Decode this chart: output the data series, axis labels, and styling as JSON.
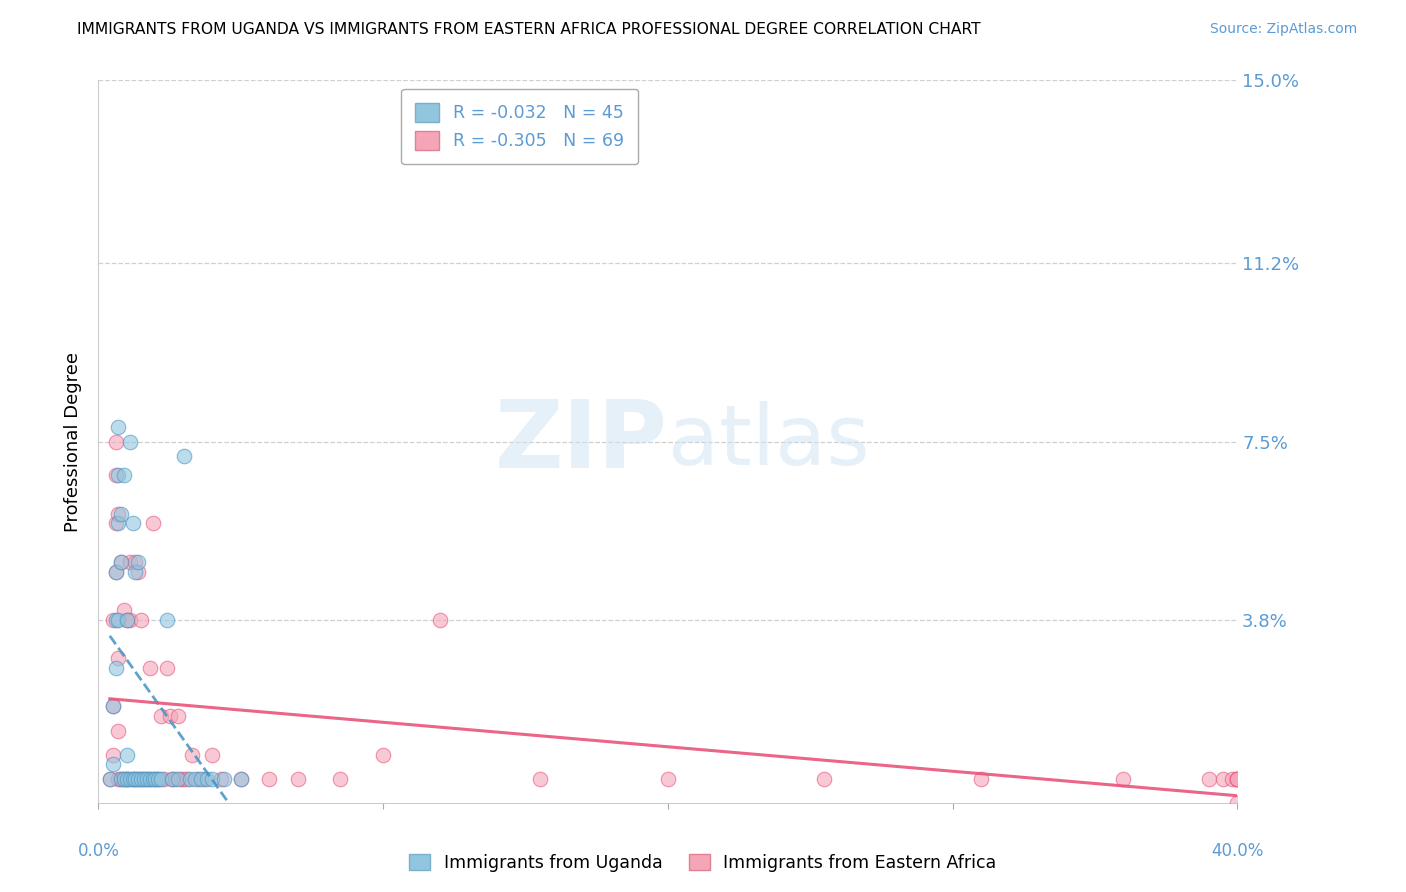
{
  "title": "IMMIGRANTS FROM UGANDA VS IMMIGRANTS FROM EASTERN AFRICA PROFESSIONAL DEGREE CORRELATION CHART",
  "source": "Source: ZipAtlas.com",
  "ylabel": "Professional Degree",
  "xlim": [
    0.0,
    0.4
  ],
  "ylim": [
    0.0,
    0.15
  ],
  "yticks": [
    0.0,
    0.038,
    0.075,
    0.112,
    0.15
  ],
  "ytick_labels": [
    "",
    "3.8%",
    "7.5%",
    "11.2%",
    "15.0%"
  ],
  "xtick_left_label": "0.0%",
  "xtick_right_label": "40.0%",
  "legend1_r_blue": "-0.032",
  "legend1_n_blue": "45",
  "legend1_r_pink": "-0.305",
  "legend1_n_pink": "69",
  "color_blue": "#92c5de",
  "color_pink": "#f4a6b8",
  "color_blue_line": "#4393c3",
  "color_pink_line": "#e8547a",
  "watermark_text": "ZIPatlas",
  "blue_x": [
    0.004,
    0.005,
    0.005,
    0.006,
    0.006,
    0.006,
    0.007,
    0.007,
    0.007,
    0.007,
    0.008,
    0.008,
    0.008,
    0.009,
    0.009,
    0.01,
    0.01,
    0.01,
    0.011,
    0.011,
    0.012,
    0.012,
    0.013,
    0.013,
    0.014,
    0.014,
    0.015,
    0.016,
    0.017,
    0.018,
    0.019,
    0.02,
    0.021,
    0.022,
    0.024,
    0.026,
    0.028,
    0.03,
    0.032,
    0.034,
    0.036,
    0.038,
    0.04,
    0.044,
    0.05
  ],
  "blue_y": [
    0.005,
    0.008,
    0.02,
    0.028,
    0.038,
    0.048,
    0.058,
    0.068,
    0.078,
    0.038,
    0.005,
    0.05,
    0.06,
    0.005,
    0.068,
    0.005,
    0.01,
    0.038,
    0.005,
    0.075,
    0.005,
    0.058,
    0.005,
    0.048,
    0.005,
    0.05,
    0.005,
    0.005,
    0.005,
    0.005,
    0.005,
    0.005,
    0.005,
    0.005,
    0.038,
    0.005,
    0.005,
    0.072,
    0.005,
    0.005,
    0.005,
    0.005,
    0.005,
    0.005,
    0.005
  ],
  "pink_x": [
    0.004,
    0.005,
    0.005,
    0.005,
    0.006,
    0.006,
    0.006,
    0.006,
    0.007,
    0.007,
    0.007,
    0.007,
    0.008,
    0.008,
    0.009,
    0.009,
    0.01,
    0.01,
    0.01,
    0.011,
    0.011,
    0.012,
    0.013,
    0.013,
    0.014,
    0.014,
    0.015,
    0.015,
    0.016,
    0.017,
    0.018,
    0.018,
    0.019,
    0.02,
    0.021,
    0.022,
    0.023,
    0.024,
    0.025,
    0.026,
    0.027,
    0.028,
    0.029,
    0.03,
    0.031,
    0.033,
    0.035,
    0.037,
    0.04,
    0.043,
    0.05,
    0.06,
    0.07,
    0.085,
    0.1,
    0.12,
    0.155,
    0.2,
    0.255,
    0.31,
    0.36,
    0.39,
    0.395,
    0.398,
    0.4,
    0.4,
    0.4,
    0.4,
    0.4
  ],
  "pink_y": [
    0.005,
    0.01,
    0.02,
    0.038,
    0.048,
    0.058,
    0.068,
    0.075,
    0.005,
    0.015,
    0.03,
    0.06,
    0.005,
    0.05,
    0.005,
    0.04,
    0.005,
    0.005,
    0.038,
    0.038,
    0.05,
    0.005,
    0.005,
    0.05,
    0.048,
    0.005,
    0.005,
    0.038,
    0.005,
    0.005,
    0.005,
    0.028,
    0.058,
    0.005,
    0.005,
    0.018,
    0.005,
    0.028,
    0.018,
    0.005,
    0.005,
    0.018,
    0.005,
    0.005,
    0.005,
    0.01,
    0.005,
    0.005,
    0.01,
    0.005,
    0.005,
    0.005,
    0.005,
    0.005,
    0.01,
    0.038,
    0.005,
    0.005,
    0.005,
    0.005,
    0.005,
    0.005,
    0.005,
    0.005,
    0.005,
    0.005,
    0.005,
    0.005,
    0.0
  ],
  "background_color": "#ffffff",
  "grid_color": "#d0d0d0"
}
